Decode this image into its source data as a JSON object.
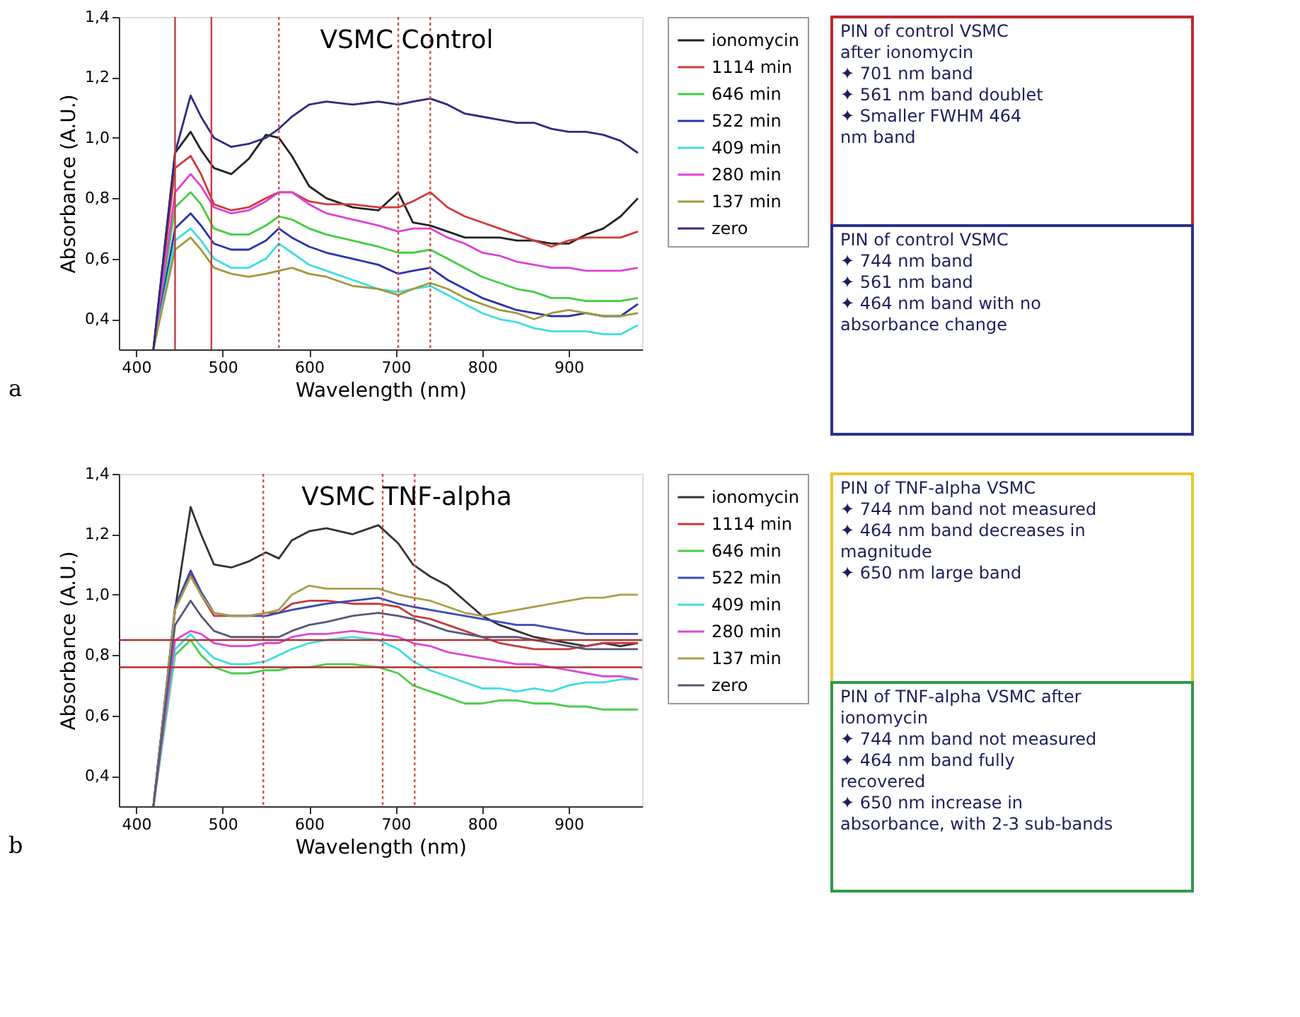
{
  "chart_data": [
    {
      "type": "line",
      "title": "VSMC Control",
      "xlabel": "Wavelength (nm)",
      "ylabel": "Absorbance (A.U.)",
      "legend": "right",
      "grid": false,
      "xlim": [
        380,
        985
      ],
      "ylim": [
        0.3,
        1.4
      ],
      "xticks": [
        400,
        500,
        600,
        700,
        800,
        900
      ],
      "yticks": [
        {
          "value": 0.4,
          "label": "0,4"
        },
        {
          "value": 0.6,
          "label": "0,6"
        },
        {
          "value": 0.8,
          "label": "0,8"
        },
        {
          "value": 1.0,
          "label": "1,0"
        },
        {
          "value": 1.2,
          "label": "1,2"
        },
        {
          "value": 1.4,
          "label": "1,4"
        }
      ],
      "x": [
        420,
        445,
        463,
        475,
        490,
        510,
        530,
        550,
        565,
        580,
        600,
        620,
        650,
        680,
        703,
        720,
        740,
        760,
        780,
        800,
        820,
        840,
        860,
        880,
        900,
        920,
        940,
        960,
        980
      ],
      "series": [
        {
          "name": "ionomycin",
          "color": "#222222",
          "values": [
            0.3,
            0.95,
            1.02,
            0.96,
            0.9,
            0.88,
            0.93,
            1.01,
            1.0,
            0.94,
            0.84,
            0.8,
            0.77,
            0.76,
            0.82,
            0.72,
            0.71,
            0.69,
            0.67,
            0.67,
            0.67,
            0.66,
            0.66,
            0.65,
            0.65,
            0.68,
            0.7,
            0.74,
            0.8
          ]
        },
        {
          "name": "1114 min",
          "color": "#d03a3a",
          "values": [
            0.3,
            0.9,
            0.94,
            0.88,
            0.78,
            0.76,
            0.77,
            0.8,
            0.82,
            0.82,
            0.79,
            0.78,
            0.78,
            0.77,
            0.77,
            0.79,
            0.82,
            0.77,
            0.74,
            0.72,
            0.7,
            0.68,
            0.66,
            0.64,
            0.66,
            0.67,
            0.67,
            0.67,
            0.69
          ]
        },
        {
          "name": "646 min",
          "color": "#3fcf3f",
          "values": [
            0.3,
            0.77,
            0.82,
            0.78,
            0.7,
            0.68,
            0.68,
            0.71,
            0.74,
            0.73,
            0.7,
            0.68,
            0.66,
            0.64,
            0.62,
            0.62,
            0.63,
            0.6,
            0.57,
            0.54,
            0.52,
            0.5,
            0.49,
            0.47,
            0.47,
            0.46,
            0.46,
            0.46,
            0.47
          ]
        },
        {
          "name": "522 min",
          "color": "#2a32b0",
          "values": [
            0.3,
            0.7,
            0.75,
            0.71,
            0.65,
            0.63,
            0.63,
            0.66,
            0.7,
            0.67,
            0.64,
            0.62,
            0.6,
            0.58,
            0.55,
            0.56,
            0.57,
            0.53,
            0.5,
            0.47,
            0.45,
            0.43,
            0.42,
            0.41,
            0.41,
            0.42,
            0.41,
            0.41,
            0.45
          ]
        },
        {
          "name": "409 min",
          "color": "#3fdede",
          "values": [
            0.3,
            0.66,
            0.7,
            0.66,
            0.6,
            0.57,
            0.57,
            0.6,
            0.65,
            0.62,
            0.58,
            0.56,
            0.53,
            0.5,
            0.49,
            0.5,
            0.51,
            0.48,
            0.45,
            0.42,
            0.4,
            0.39,
            0.37,
            0.36,
            0.36,
            0.36,
            0.35,
            0.35,
            0.38
          ]
        },
        {
          "name": "280 min",
          "color": "#e040d8",
          "values": [
            0.3,
            0.82,
            0.88,
            0.84,
            0.77,
            0.75,
            0.76,
            0.79,
            0.82,
            0.82,
            0.78,
            0.75,
            0.73,
            0.71,
            0.69,
            0.7,
            0.7,
            0.67,
            0.65,
            0.62,
            0.61,
            0.59,
            0.58,
            0.57,
            0.57,
            0.56,
            0.56,
            0.56,
            0.57
          ]
        },
        {
          "name": "137 min",
          "color": "#a09a3a",
          "values": [
            0.3,
            0.63,
            0.67,
            0.63,
            0.57,
            0.55,
            0.54,
            0.55,
            0.56,
            0.57,
            0.55,
            0.54,
            0.51,
            0.5,
            0.48,
            0.5,
            0.52,
            0.5,
            0.47,
            0.45,
            0.43,
            0.42,
            0.4,
            0.42,
            0.43,
            0.42,
            0.41,
            0.41,
            0.42
          ]
        },
        {
          "name": "zero",
          "color": "#2c2c80",
          "values": [
            0.3,
            0.95,
            1.14,
            1.07,
            1.0,
            0.97,
            0.98,
            1.0,
            1.03,
            1.07,
            1.11,
            1.12,
            1.11,
            1.12,
            1.11,
            1.12,
            1.13,
            1.11,
            1.08,
            1.07,
            1.06,
            1.05,
            1.05,
            1.03,
            1.02,
            1.02,
            1.01,
            0.99,
            0.95
          ]
        }
      ],
      "ref_lines": [
        {
          "axis": "x",
          "value": 445,
          "color": "#c04040",
          "line_style": "solid"
        },
        {
          "axis": "x",
          "value": 487,
          "color": "#c04040",
          "line_style": "solid"
        },
        {
          "axis": "x",
          "value": 565,
          "color": "#d05050",
          "line_style": "dotted"
        },
        {
          "axis": "x",
          "value": 703,
          "color": "#d05050",
          "line_style": "dotted"
        },
        {
          "axis": "x",
          "value": 740,
          "color": "#d05050",
          "line_style": "dotted"
        }
      ],
      "annotations": [
        "a",
        "PIN of control VSMC\nafter ionomycin\n✦    701 nm band\n✦    561 nm band doublet\n✦    Smaller FWHM 464\nnm band",
        "PIN of control VSMC\n✦    744 nm band\n✦    561 nm band\n✦    464 nm band with no\nabsorbance change"
      ]
    },
    {
      "type": "line",
      "title": "VSMC TNF-alpha",
      "xlabel": "Wavelength (nm)",
      "ylabel": "Absorbance (A.U.)",
      "legend": "right",
      "grid": false,
      "xlim": [
        380,
        985
      ],
      "ylim": [
        0.3,
        1.4
      ],
      "xticks": [
        400,
        500,
        600,
        700,
        800,
        900
      ],
      "yticks": [
        {
          "value": 0.4,
          "label": "0,4"
        },
        {
          "value": 0.6,
          "label": "0,6"
        },
        {
          "value": 0.8,
          "label": "0,8"
        },
        {
          "value": 1.0,
          "label": "1,0"
        },
        {
          "value": 1.2,
          "label": "1,2"
        },
        {
          "value": 1.4,
          "label": "1,4"
        }
      ],
      "x": [
        420,
        445,
        463,
        475,
        490,
        510,
        530,
        550,
        565,
        580,
        600,
        620,
        650,
        680,
        703,
        720,
        740,
        760,
        780,
        800,
        820,
        840,
        860,
        880,
        900,
        920,
        940,
        960,
        980
      ],
      "series": [
        {
          "name": "ionomycin",
          "color": "#333333",
          "values": [
            0.3,
            0.95,
            1.29,
            1.2,
            1.1,
            1.09,
            1.11,
            1.14,
            1.12,
            1.18,
            1.21,
            1.22,
            1.2,
            1.23,
            1.17,
            1.1,
            1.06,
            1.03,
            0.98,
            0.93,
            0.9,
            0.88,
            0.86,
            0.85,
            0.84,
            0.83,
            0.84,
            0.83,
            0.84
          ]
        },
        {
          "name": "1114 min",
          "color": "#c83a3a",
          "values": [
            0.3,
            0.95,
            1.07,
            1.0,
            0.93,
            0.93,
            0.93,
            0.94,
            0.94,
            0.97,
            0.98,
            0.98,
            0.97,
            0.97,
            0.96,
            0.93,
            0.92,
            0.9,
            0.88,
            0.86,
            0.84,
            0.83,
            0.82,
            0.82,
            0.82,
            0.83,
            0.84,
            0.84,
            0.84
          ]
        },
        {
          "name": "646 min",
          "color": "#4ccc4c",
          "values": [
            0.3,
            0.8,
            0.85,
            0.8,
            0.76,
            0.74,
            0.74,
            0.75,
            0.75,
            0.76,
            0.76,
            0.77,
            0.77,
            0.76,
            0.74,
            0.7,
            0.68,
            0.66,
            0.64,
            0.64,
            0.65,
            0.65,
            0.64,
            0.64,
            0.63,
            0.63,
            0.62,
            0.62,
            0.62
          ]
        },
        {
          "name": "522 min",
          "color": "#3a4ab8",
          "values": [
            0.3,
            0.96,
            1.08,
            1.01,
            0.94,
            0.93,
            0.93,
            0.93,
            0.94,
            0.95,
            0.96,
            0.97,
            0.98,
            0.99,
            0.97,
            0.96,
            0.95,
            0.94,
            0.93,
            0.92,
            0.91,
            0.9,
            0.9,
            0.89,
            0.88,
            0.87,
            0.87,
            0.87,
            0.87
          ]
        },
        {
          "name": "409 min",
          "color": "#40dede",
          "values": [
            0.3,
            0.82,
            0.87,
            0.83,
            0.79,
            0.77,
            0.77,
            0.78,
            0.8,
            0.82,
            0.84,
            0.85,
            0.86,
            0.85,
            0.82,
            0.78,
            0.75,
            0.73,
            0.71,
            0.69,
            0.69,
            0.68,
            0.69,
            0.68,
            0.7,
            0.71,
            0.71,
            0.72,
            0.72
          ]
        },
        {
          "name": "280 min",
          "color": "#dd48d8",
          "values": [
            0.3,
            0.85,
            0.88,
            0.87,
            0.84,
            0.83,
            0.83,
            0.84,
            0.84,
            0.86,
            0.87,
            0.87,
            0.88,
            0.87,
            0.86,
            0.84,
            0.83,
            0.81,
            0.8,
            0.79,
            0.78,
            0.77,
            0.77,
            0.76,
            0.75,
            0.74,
            0.73,
            0.73,
            0.72
          ]
        },
        {
          "name": "137 min",
          "color": "#a8a048",
          "values": [
            0.3,
            0.95,
            1.06,
            1.0,
            0.94,
            0.93,
            0.93,
            0.94,
            0.95,
            1.0,
            1.03,
            1.02,
            1.02,
            1.02,
            1.0,
            0.99,
            0.98,
            0.96,
            0.94,
            0.93,
            0.94,
            0.95,
            0.96,
            0.97,
            0.98,
            0.99,
            0.99,
            1.0,
            1.0
          ]
        },
        {
          "name": "zero",
          "color": "#58587a",
          "values": [
            0.3,
            0.9,
            0.98,
            0.93,
            0.88,
            0.86,
            0.86,
            0.86,
            0.86,
            0.88,
            0.9,
            0.91,
            0.93,
            0.94,
            0.93,
            0.92,
            0.9,
            0.88,
            0.87,
            0.86,
            0.86,
            0.86,
            0.85,
            0.84,
            0.83,
            0.82,
            0.82,
            0.82,
            0.82
          ]
        }
      ],
      "ref_lines": [
        {
          "axis": "x",
          "value": 547,
          "color": "#d05050",
          "line_style": "dotted"
        },
        {
          "axis": "x",
          "value": 685,
          "color": "#d05050",
          "line_style": "dotted"
        },
        {
          "axis": "x",
          "value": 722,
          "color": "#d05050",
          "line_style": "dotted"
        },
        {
          "axis": "y",
          "value": 0.85,
          "color": "#b03030",
          "line_style": "solid"
        },
        {
          "axis": "y",
          "value": 0.76,
          "color": "#b03030",
          "line_style": "solid"
        }
      ],
      "annotations": [
        "b",
        "PIN of TNF-alpha VSMC\n✦    744 nm band not measured\n✦    464 nm band decreases in\nmagnitude\n✦    650 nm large band",
        "PIN of TNF-alpha VSMC after\nionomycin\n✦    744 nm band not measured\n✦    464 nm band fully\nrecovered\n✦    650 nm increase in\nabsorbance, with 2-3 sub-bands"
      ]
    }
  ]
}
